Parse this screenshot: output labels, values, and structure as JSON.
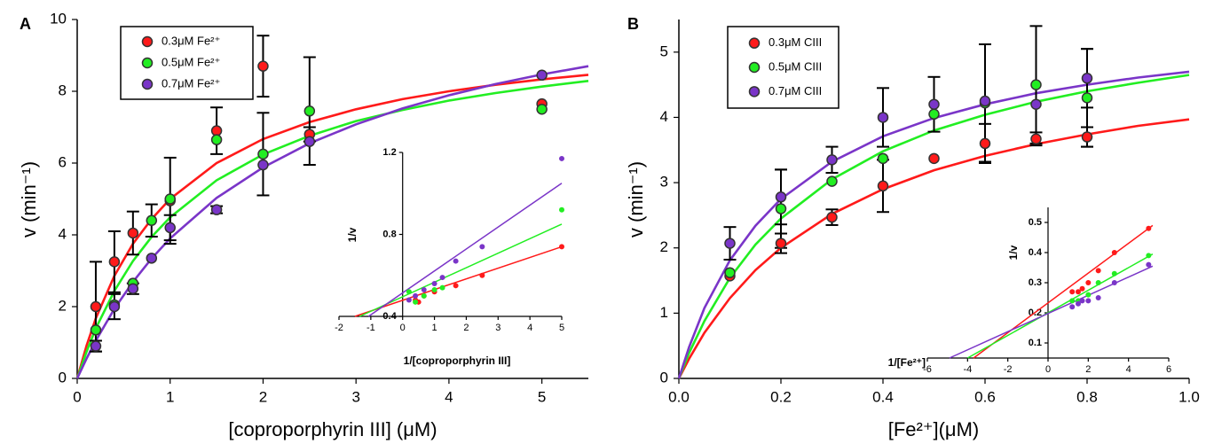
{
  "chart_data": [
    {
      "type": "scatter",
      "panel": "A",
      "xlabel": "[coproporphyrin III] (μM)",
      "ylabel": "v (min⁻¹)",
      "xlim": [
        0,
        5.5
      ],
      "ylim": [
        0,
        10
      ],
      "xticks": [
        0,
        1,
        2,
        3,
        4,
        5
      ],
      "yticks": [
        0,
        2,
        4,
        6,
        8,
        10
      ],
      "legend": "upper left",
      "x": [
        0.2,
        0.4,
        0.6,
        0.8,
        1.0,
        1.5,
        2.0,
        2.5,
        5.0
      ],
      "series": [
        {
          "name": "0.3μM Fe²⁺",
          "color": "#ff1a1a",
          "values": [
            2.0,
            3.25,
            4.05,
            null,
            4.95,
            6.9,
            8.7,
            6.8,
            7.65
          ],
          "errors": [
            1.25,
            0.85,
            0.6,
            null,
            1.2,
            0.65,
            0.85,
            0.2,
            null
          ],
          "fit_x": [
            0,
            0.1,
            0.2,
            0.4,
            0.6,
            0.8,
            1,
            1.5,
            2,
            2.5,
            3,
            3.5,
            4,
            4.5,
            5,
            5.5
          ],
          "fit_values": [
            0,
            0.91,
            1.67,
            2.86,
            3.75,
            4.44,
            5.0,
            6.0,
            6.67,
            7.14,
            7.5,
            7.78,
            8.0,
            8.18,
            8.33,
            8.46
          ]
        },
        {
          "name": "0.5μM Fe²⁺",
          "color": "#22ee22",
          "values": [
            1.35,
            2.05,
            2.65,
            4.4,
            5.0,
            6.65,
            6.25,
            7.45,
            7.5
          ],
          "errors": [
            null,
            null,
            null,
            0.45,
            null,
            null,
            1.15,
            1.5,
            null
          ],
          "fit_x": [
            0,
            0.1,
            0.2,
            0.4,
            0.6,
            0.8,
            1,
            1.5,
            2,
            2.5,
            3,
            3.5,
            4,
            4.5,
            5,
            5.5
          ],
          "fit_values": [
            0,
            0.74,
            1.39,
            2.44,
            3.27,
            3.94,
            4.49,
            5.52,
            6.24,
            6.76,
            7.17,
            7.48,
            7.74,
            7.95,
            8.13,
            8.29
          ]
        },
        {
          "name": "0.7μM Fe²⁺",
          "color": "#7a35c8",
          "values": [
            0.9,
            2.0,
            2.5,
            3.35,
            4.2,
            4.7,
            5.95,
            6.6,
            8.45
          ],
          "errors": [
            0.15,
            0.35,
            0.15,
            null,
            0.35,
            0.1,
            null,
            null,
            null
          ],
          "fit_x": [
            0,
            0.1,
            0.2,
            0.4,
            0.6,
            0.8,
            1,
            1.5,
            2,
            2.5,
            3,
            3.5,
            4,
            4.5,
            5,
            5.5
          ],
          "fit_values": [
            0,
            0.55,
            1.05,
            1.94,
            2.69,
            3.34,
            3.9,
            5.03,
            5.88,
            6.55,
            7.08,
            7.52,
            7.89,
            8.2,
            8.47,
            8.7
          ]
        }
      ]
    },
    {
      "type": "scatter",
      "xlabel": "1/[coproporphyrin III]",
      "ylabel": "1/v",
      "xlim": [
        -2,
        5
      ],
      "ylim": [
        0.4,
        1.2
      ],
      "xticks": [
        -2,
        -1,
        0,
        1,
        2,
        3,
        4,
        5
      ],
      "yticks": [
        0.4,
        0.8,
        1.2
      ],
      "series": [
        {
          "color": "#ff1a1a",
          "x": [
            0.4,
            0.5,
            0.67,
            1.0,
            1.67,
            2.5,
            5.0
          ],
          "values": [
            0.48,
            0.47,
            0.5,
            0.52,
            0.55,
            0.6,
            0.74
          ],
          "fit_x": [
            -1.5,
            5
          ],
          "fit_values": [
            0.4,
            0.74
          ]
        },
        {
          "color": "#22ee22",
          "x": [
            0.2,
            0.4,
            0.67,
            1.0,
            1.25,
            5.0
          ],
          "values": [
            0.52,
            0.47,
            0.5,
            0.53,
            0.54,
            0.92
          ],
          "fit_x": [
            -1.35,
            5
          ],
          "fit_values": [
            0.4,
            0.85
          ]
        },
        {
          "color": "#7a35c8",
          "x": [
            0.2,
            0.4,
            0.67,
            1.0,
            1.25,
            1.67,
            2.5,
            5.0
          ],
          "values": [
            0.48,
            0.5,
            0.53,
            0.56,
            0.59,
            0.67,
            0.74,
            1.17
          ],
          "fit_x": [
            -1.07,
            5
          ],
          "fit_values": [
            0.4,
            1.05
          ]
        }
      ]
    },
    {
      "type": "scatter",
      "panel": "B",
      "xlabel": "[Fe²⁺](μM)",
      "ylabel": "v (min⁻¹)",
      "xlim": [
        0,
        1.0
      ],
      "ylim": [
        0,
        5.5
      ],
      "xticks": [
        {
          "value": 0,
          "label": "0.0"
        },
        0.2,
        0.4,
        0.6,
        0.8,
        {
          "value": 1,
          "label": "1.0"
        }
      ],
      "yticks": [
        0,
        1,
        2,
        3,
        4,
        5
      ],
      "legend": "upper left",
      "x": [
        0.1,
        0.2,
        0.3,
        0.4,
        0.5,
        0.6,
        0.7,
        0.8
      ],
      "series": [
        {
          "name": "0.3μM CIII",
          "color": "#ff1a1a",
          "values": [
            1.57,
            2.07,
            2.47,
            2.95,
            3.37,
            3.6,
            3.67,
            3.7
          ],
          "errors": [
            null,
            0.15,
            0.12,
            0.4,
            null,
            0.3,
            0.1,
            0.15
          ],
          "fit_x": [
            0,
            0.02,
            0.05,
            0.1,
            0.15,
            0.2,
            0.3,
            0.4,
            0.5,
            0.6,
            0.7,
            0.8,
            0.9,
            1.0
          ],
          "fit_values": [
            0,
            0.3,
            0.7,
            1.23,
            1.66,
            2.0,
            2.52,
            2.9,
            3.19,
            3.41,
            3.59,
            3.74,
            3.87,
            3.97
          ]
        },
        {
          "name": "0.5μM CIII",
          "color": "#22ee22",
          "values": [
            1.62,
            2.6,
            3.02,
            3.37,
            4.05,
            4.22,
            4.5,
            4.3
          ],
          "errors": [
            null,
            0.6,
            null,
            null,
            null,
            0.9,
            0.9,
            0.75
          ],
          "fit_x": [
            0,
            0.02,
            0.05,
            0.1,
            0.15,
            0.2,
            0.3,
            0.4,
            0.5,
            0.6,
            0.7,
            0.8,
            0.9,
            1.0
          ],
          "fit_values": [
            0,
            0.39,
            0.88,
            1.54,
            2.05,
            2.45,
            3.05,
            3.48,
            3.8,
            4.04,
            4.24,
            4.4,
            4.53,
            4.65
          ]
        },
        {
          "name": "0.7μM CIII",
          "color": "#7a35c8",
          "values": [
            2.07,
            2.78,
            3.35,
            4.0,
            4.2,
            4.25,
            4.2,
            4.6
          ],
          "errors": [
            0.25,
            0.42,
            0.2,
            0.45,
            0.42,
            null,
            null,
            0.45
          ],
          "fit_x": [
            0,
            0.02,
            0.05,
            0.1,
            0.15,
            0.2,
            0.3,
            0.4,
            0.5,
            0.6,
            0.7,
            0.8,
            0.9,
            1.0
          ],
          "fit_values": [
            0,
            0.48,
            1.08,
            1.81,
            2.34,
            2.75,
            3.32,
            3.71,
            3.99,
            4.2,
            4.37,
            4.5,
            4.61,
            4.7
          ]
        }
      ]
    },
    {
      "type": "scatter",
      "xlabel": "1/[Fe²⁺]",
      "ylabel": "1/v",
      "xlim": [
        -6,
        6
      ],
      "ylim": [
        0.05,
        0.55
      ],
      "xticks": [
        -6,
        -4,
        -2,
        0,
        2,
        4,
        6
      ],
      "yticks": [
        0.1,
        0.2,
        0.3,
        0.4,
        0.5
      ],
      "series": [
        {
          "color": "#ff1a1a",
          "x": [
            1.2,
            1.5,
            1.7,
            2.0,
            2.5,
            3.3,
            5.0
          ],
          "values": [
            0.27,
            0.27,
            0.28,
            0.3,
            0.34,
            0.4,
            0.48
          ],
          "fit_x": [
            -3.7,
            5.2
          ],
          "fit_values": [
            0.05,
            0.49
          ]
        },
        {
          "color": "#22ee22",
          "x": [
            1.2,
            1.5,
            2.0,
            2.5,
            3.3,
            5.0
          ],
          "values": [
            0.24,
            0.24,
            0.26,
            0.3,
            0.33,
            0.39
          ],
          "fit_x": [
            -4.0,
            5.2
          ],
          "fit_values": [
            0.05,
            0.395
          ]
        },
        {
          "color": "#7a35c8",
          "x": [
            1.2,
            1.5,
            1.7,
            2.0,
            2.5,
            3.3,
            5.0
          ],
          "values": [
            0.22,
            0.23,
            0.24,
            0.24,
            0.25,
            0.3,
            0.36
          ],
          "fit_x": [
            -4.9,
            5.2
          ],
          "fit_values": [
            0.05,
            0.355
          ]
        }
      ]
    }
  ]
}
